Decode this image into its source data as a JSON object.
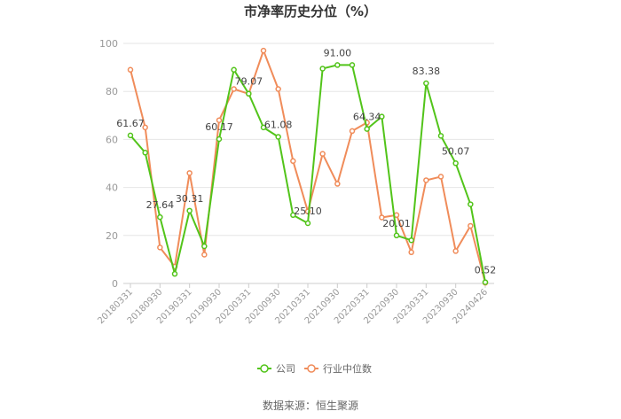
{
  "chart_data": {
    "type": "line",
    "title": "市净率历史分位（%）",
    "source": "数据来源：恒生聚源",
    "ylim": [
      0,
      100
    ],
    "yticks": [
      0,
      20,
      40,
      60,
      80,
      100
    ],
    "grid": true,
    "legend_position": "bottom-center",
    "x_tick_labels": [
      "20180331",
      "20180930",
      "20190331",
      "20190930",
      "20200331",
      "20200930",
      "20210331",
      "20210930",
      "20220331",
      "20220930",
      "20230331",
      "20230930",
      "20240426"
    ],
    "x_tick_indices": [
      0,
      2,
      4,
      6,
      8,
      10,
      12,
      14,
      16,
      18,
      20,
      22,
      24
    ],
    "series": [
      {
        "name": "公司",
        "color": "#52c41a",
        "values": [
          61.67,
          54.5,
          27.64,
          4.0,
          30.31,
          15.5,
          60.17,
          89.0,
          79.07,
          65.0,
          61.08,
          28.5,
          25.1,
          89.5,
          91.0,
          91.0,
          64.34,
          69.5,
          20.01,
          18.0,
          83.38,
          61.5,
          50.07,
          33.0,
          0.52
        ],
        "labels": {
          "0": "61.67",
          "2": "27.64",
          "4": "30.31",
          "6": "60.17",
          "8": "79.07",
          "10": "61.08",
          "12": "25.10",
          "14": "91.00",
          "16": "64.34",
          "18": "20.01",
          "20": "83.38",
          "22": "50.07",
          "24": "0.52"
        }
      },
      {
        "name": "行业中位数",
        "color": "#f08c5a",
        "values": [
          89.0,
          65.0,
          15.0,
          7.0,
          46.0,
          12.0,
          68.0,
          81.0,
          79.0,
          97.0,
          81.0,
          51.0,
          30.0,
          54.0,
          41.5,
          63.5,
          67.0,
          27.5,
          28.5,
          13.0,
          43.0,
          44.5,
          13.5,
          24.0,
          0.3
        ]
      }
    ]
  }
}
